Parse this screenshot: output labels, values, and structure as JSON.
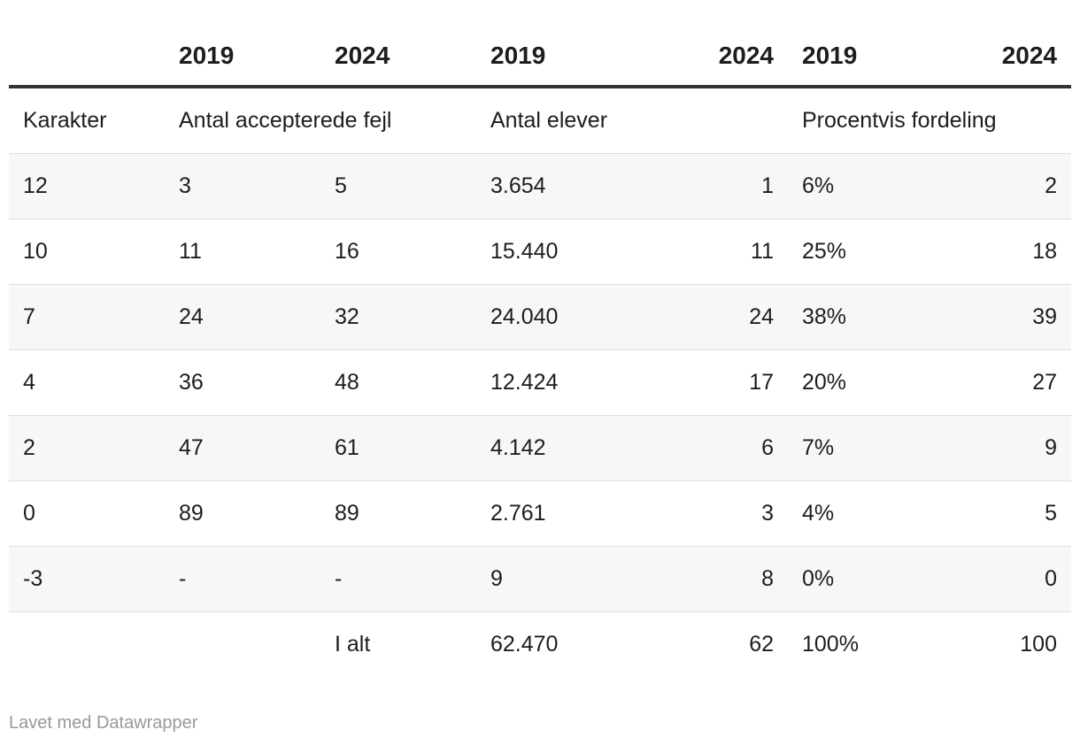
{
  "chart_data": {
    "type": "table",
    "title": "",
    "columns": [
      "",
      "2019",
      "2024",
      "2019",
      "",
      "2024",
      "2019",
      "2024"
    ],
    "subheaders": {
      "karakter": "Karakter",
      "fejl": "Antal accepterede fejl",
      "elever": "Antal elever",
      "procent": "Procentvis fordeling"
    },
    "rows": [
      {
        "karakter": "12",
        "fejl_2019": "3",
        "fejl_2024": "5",
        "elever_2019": "3.654",
        "elever_2024": "1",
        "pct_2019": "6%",
        "pct_2024": "2"
      },
      {
        "karakter": "10",
        "fejl_2019": "11",
        "fejl_2024": "16",
        "elever_2019": "15.440",
        "elever_2024": "11",
        "pct_2019": "25%",
        "pct_2024": "18"
      },
      {
        "karakter": "7",
        "fejl_2019": "24",
        "fejl_2024": "32",
        "elever_2019": "24.040",
        "elever_2024": "24",
        "pct_2019": "38%",
        "pct_2024": "39"
      },
      {
        "karakter": "4",
        "fejl_2019": "36",
        "fejl_2024": "48",
        "elever_2019": "12.424",
        "elever_2024": "17",
        "pct_2019": "20%",
        "pct_2024": "27"
      },
      {
        "karakter": "2",
        "fejl_2019": "47",
        "fejl_2024": "61",
        "elever_2019": "4.142",
        "elever_2024": "6",
        "pct_2019": "7%",
        "pct_2024": "9"
      },
      {
        "karakter": "0",
        "fejl_2019": "89",
        "fejl_2024": "89",
        "elever_2019": "2.761",
        "elever_2024": "3",
        "pct_2019": "4%",
        "pct_2024": "5"
      },
      {
        "karakter": "-3",
        "fejl_2019": "-",
        "fejl_2024": "-",
        "elever_2019": "9",
        "elever_2024": "8",
        "pct_2019": "0%",
        "pct_2024": "0"
      }
    ],
    "total": {
      "label": "I alt",
      "elever_2019": "62.470",
      "elever_2024": "62",
      "pct_2019": "100%",
      "pct_2024": "100"
    }
  },
  "footer": {
    "credit": "Lavet med Datawrapper"
  }
}
